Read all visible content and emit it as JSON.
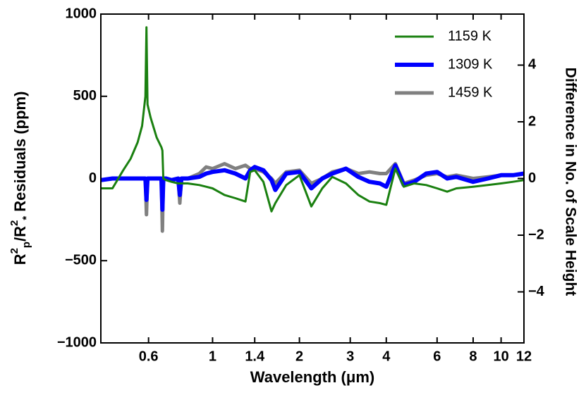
{
  "chart_data": {
    "type": "line",
    "xlabel": "Wavelength (μm)",
    "ylabel": [
      {
        "text": "R"
      },
      {
        "text": "2",
        "shift": "super"
      },
      {
        "text": "p",
        "shift": "sub"
      },
      {
        "text": "/R"
      },
      {
        "text": "2",
        "shift": "super"
      },
      {
        "text": "*",
        "shift": "sub"
      },
      {
        "text": "  Residuals (ppm)"
      }
    ],
    "y2label": "Difference in No. of Scale Height",
    "xscale": "log",
    "xlim": [
      0.41,
      12
    ],
    "xticks": [
      0.6,
      1,
      1.4,
      2,
      3,
      4,
      6,
      8,
      10,
      12
    ],
    "ylim": [
      -1000,
      1000
    ],
    "yticks": [
      {
        "value": -1000,
        "label": "−1000"
      },
      {
        "value": -500,
        "label": "−500"
      },
      0,
      500,
      1000
    ],
    "y2lim": [
      -5.8,
      5.8
    ],
    "y2ticks": [
      {
        "value": -4,
        "label": "−4"
      },
      {
        "value": -2,
        "label": "−2"
      },
      0,
      2,
      4
    ],
    "legend": "upper right",
    "x": [
      0.41,
      0.45,
      0.49,
      0.52,
      0.55,
      0.57,
      0.585,
      0.59,
      0.595,
      0.61,
      0.64,
      0.665,
      0.67,
      0.675,
      0.69,
      0.72,
      0.76,
      0.77,
      0.78,
      0.82,
      0.9,
      0.95,
      1.0,
      1.1,
      1.2,
      1.3,
      1.35,
      1.4,
      1.5,
      1.6,
      1.65,
      1.8,
      2.0,
      2.2,
      2.4,
      2.6,
      2.9,
      3.2,
      3.5,
      3.8,
      4.0,
      4.3,
      4.6,
      5.0,
      5.5,
      6.0,
      6.5,
      7.0,
      8.0,
      9.0,
      10,
      11,
      12
    ],
    "series": [
      {
        "name": "1159 K",
        "color": "#1a8010",
        "width": 3,
        "values": [
          -60,
          -60,
          50,
          120,
          220,
          320,
          500,
          920,
          450,
          370,
          250,
          190,
          170,
          0,
          -10,
          -20,
          -30,
          -30,
          -30,
          -30,
          -40,
          -50,
          -60,
          -100,
          -120,
          -140,
          40,
          50,
          -20,
          -200,
          -150,
          -40,
          20,
          -170,
          -60,
          10,
          -30,
          -100,
          -140,
          -150,
          -160,
          60,
          -50,
          -30,
          -40,
          -60,
          -80,
          -60,
          -50,
          -40,
          -30,
          -20,
          -10
        ]
      },
      {
        "name": "1309 K",
        "color": "#0000ff",
        "width": 6,
        "values": [
          -10,
          0,
          0,
          0,
          0,
          0,
          0,
          -130,
          0,
          0,
          0,
          0,
          -190,
          0,
          0,
          -10,
          0,
          -100,
          0,
          0,
          10,
          30,
          40,
          50,
          30,
          0,
          50,
          70,
          50,
          -10,
          -70,
          30,
          40,
          -60,
          0,
          30,
          60,
          10,
          -20,
          -30,
          -50,
          80,
          -40,
          -20,
          30,
          40,
          0,
          10,
          -20,
          0,
          20,
          20,
          30
        ]
      },
      {
        "name": "1459 K",
        "color": "#808080",
        "width": 5,
        "values": [
          -10,
          0,
          0,
          0,
          0,
          0,
          0,
          -220,
          0,
          0,
          0,
          0,
          -320,
          0,
          0,
          -10,
          0,
          -150,
          0,
          0,
          30,
          70,
          60,
          90,
          60,
          80,
          60,
          60,
          40,
          0,
          -30,
          40,
          50,
          -30,
          0,
          40,
          60,
          30,
          40,
          30,
          30,
          90,
          -30,
          -10,
          20,
          30,
          10,
          20,
          0,
          10,
          20,
          20,
          30
        ]
      }
    ]
  }
}
